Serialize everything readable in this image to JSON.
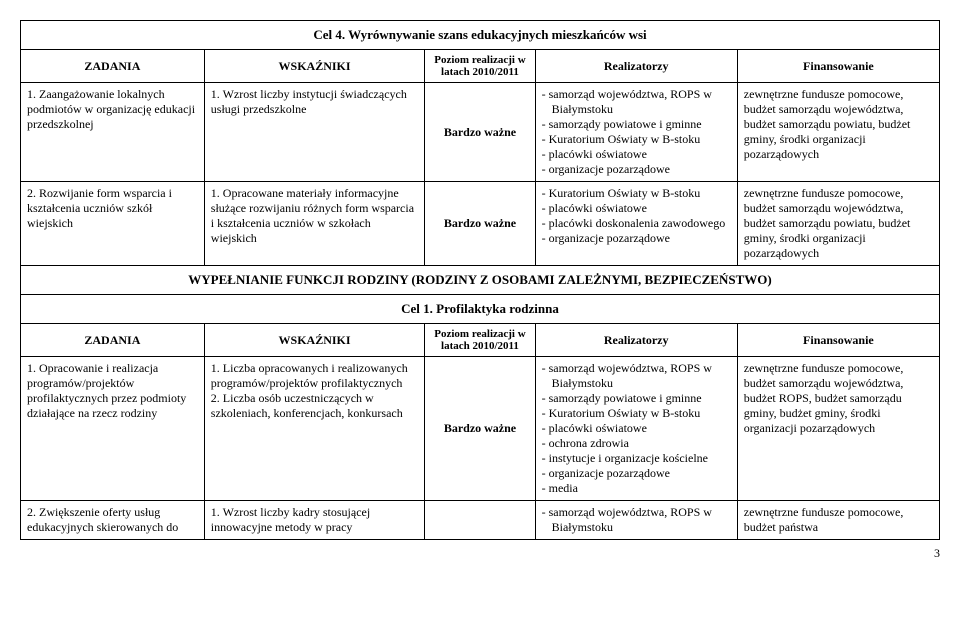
{
  "main_title": "Cel 4. Wyrównywanie szans edukacyjnych mieszkańców wsi",
  "headers": {
    "zadania": "ZADANIA",
    "wskazniki": "WSKAŹNIKI",
    "poziom": "Poziom realizacji w latach 2010/2011",
    "realizatorzy": "Realizatorzy",
    "finansowanie": "Finansowanie"
  },
  "poziom_value": "Bardzo ważne",
  "table1": {
    "rows": [
      {
        "zadania": "1. Zaangażowanie lokalnych podmiotów w organizację edukacji przedszkolnej",
        "wskazniki": "1. Wzrost liczby instytucji świadczących usługi przedszkolne",
        "realizatorzy": [
          "- samorząd województwa, ROPS w Białymstoku",
          "- samorządy powiatowe i gminne",
          "- Kuratorium Oświaty w B-stoku",
          "- placówki oświatowe",
          "- organizacje pozarządowe"
        ],
        "finansowanie": "zewnętrzne fundusze pomocowe, budżet samorządu województwa, budżet samorządu powiatu, budżet gminy, środki organizacji pozarządowych"
      },
      {
        "zadania": "2. Rozwijanie form wsparcia i kształcenia uczniów szkół wiejskich",
        "wskazniki": "1. Opracowane materiały informacyjne służące rozwijaniu różnych form wsparcia i kształcenia uczniów w szkołach wiejskich",
        "realizatorzy": [
          "- Kuratorium Oświaty w B-stoku",
          "- placówki oświatowe",
          "- placówki doskonalenia zawodowego",
          "- organizacje pozarządowe"
        ],
        "finansowanie": "zewnętrzne fundusze pomocowe, budżet samorządu województwa, budżet samorządu powiatu, budżet gminy, środki organizacji pozarządowych"
      }
    ]
  },
  "section_header": "WYPEŁNIANIE FUNKCJI RODZINY (RODZINY Z OSOBAMI ZALEŻNYMI, BEZPIECZEŃSTWO)",
  "sub_title": "Cel 1. Profilaktyka rodzinna",
  "table2": {
    "rows": [
      {
        "zadania": "1. Opracowanie i realizacja programów/projektów profilaktycznych przez podmioty działające na rzecz rodziny",
        "wskazniki": "1. Liczba opracowanych i realizowanych programów/projektów profilaktycznych\n2. Liczba osób uczestniczących w szkoleniach, konferencjach, konkursach",
        "realizatorzy": [
          "- samorząd województwa, ROPS w Białymstoku",
          "- samorządy powiatowe i gminne",
          "- Kuratorium Oświaty w B-stoku",
          "- placówki oświatowe",
          "- ochrona zdrowia",
          "- instytucje i organizacje kościelne",
          "- organizacje pozarządowe",
          "- media"
        ],
        "finansowanie": "zewnętrzne fundusze pomocowe, budżet samorządu województwa, budżet ROPS, budżet samorządu gminy, budżet gminy, środki organizacji pozarządowych"
      },
      {
        "zadania": "2. Zwiększenie oferty usług edukacyjnych skierowanych do",
        "wskazniki": "1. Wzrost liczby kadry stosującej innowacyjne metody w pracy",
        "realizatorzy": [
          "- samorząd województwa, ROPS w Białymstoku"
        ],
        "finansowanie": "zewnętrzne fundusze pomocowe, budżet państwa"
      }
    ]
  },
  "page_number": "3"
}
